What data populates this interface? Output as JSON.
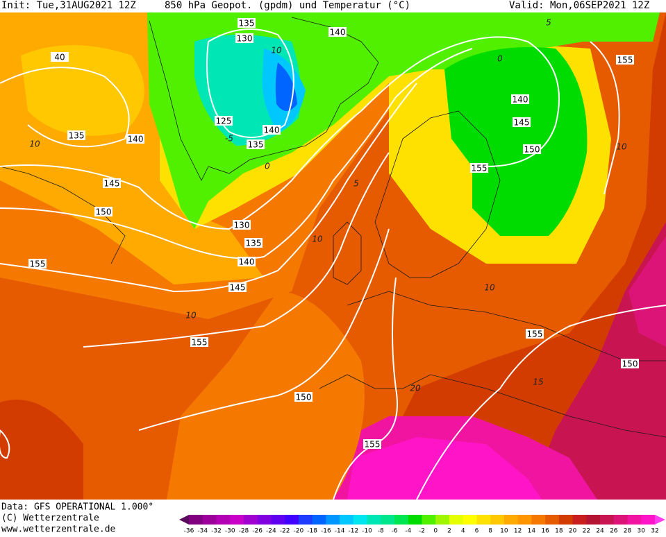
{
  "header": {
    "init": "Init: Tue,31AUG2021 12Z",
    "title": "850 hPa Geopot. (gpdm) und Temperatur (°C)",
    "valid": "Valid: Mon,06SEP2021 12Z"
  },
  "map": {
    "geopotential_labels": [
      "135",
      "140",
      "130",
      "40",
      "155",
      "140",
      "125",
      "140",
      "145",
      "135",
      "140",
      "135",
      "150",
      "155",
      "145",
      "150",
      "130",
      "135",
      "155",
      "140",
      "145",
      "155",
      "155",
      "150",
      "150",
      "155"
    ],
    "temperature_labels": [
      "10",
      "10",
      "10",
      "10",
      "10",
      "10",
      "15",
      "20",
      "5",
      "0",
      "0",
      "5",
      "-5"
    ]
  },
  "footer": {
    "source": "Data: GFS OPERATIONAL 1.000°",
    "copyright": "(C) Wetterzentrale",
    "url": "www.wetterzentrale.de"
  },
  "colorbar": {
    "labels": [
      -36,
      -34,
      -32,
      -30,
      -28,
      -26,
      -24,
      -22,
      -20,
      -18,
      -16,
      -14,
      -12,
      -10,
      -8,
      -6,
      -4,
      -2,
      0,
      2,
      4,
      6,
      8,
      10,
      12,
      14,
      16,
      18,
      20,
      22,
      24,
      26,
      28,
      30,
      32
    ],
    "colors": [
      "#5a0a5a",
      "#800080",
      "#9b009b",
      "#b400b4",
      "#c800c8",
      "#a000d0",
      "#8000e0",
      "#6000f0",
      "#4000ff",
      "#1e3cff",
      "#0064ff",
      "#0096ff",
      "#00c8ff",
      "#00e6f0",
      "#00e6b4",
      "#00e68c",
      "#00e650",
      "#00dc00",
      "#50f000",
      "#a0f500",
      "#e6ff00",
      "#ffff00",
      "#ffe100",
      "#ffc800",
      "#ffaa00",
      "#ff9600",
      "#f57800",
      "#e65a00",
      "#d23c00",
      "#c81e1e",
      "#b41432",
      "#c81450",
      "#dc1478",
      "#f014a0",
      "#ff14c8",
      "#ff3cf0"
    ]
  }
}
